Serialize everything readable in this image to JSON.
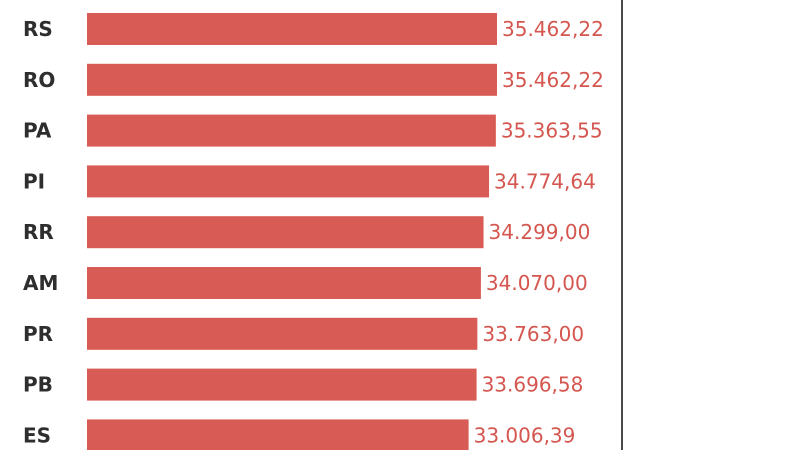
{
  "chart_data": {
    "type": "bar",
    "orientation": "horizontal",
    "categories": [
      "RS",
      "RO",
      "PA",
      "PI",
      "RR",
      "AM",
      "PR",
      "PB",
      "ES"
    ],
    "values": [
      35462.22,
      35462.22,
      35363.55,
      34774.64,
      34299.0,
      34070.0,
      33763.0,
      33696.58,
      33006.39
    ],
    "value_labels": [
      "35.462,22",
      "35.462,22",
      "35.363,55",
      "34.774,64",
      "34.299,00",
      "34.070,00",
      "33.763,00",
      "33.696,58",
      "33.006,39"
    ],
    "title": "",
    "xlabel": "",
    "ylabel": "",
    "xlim": [
      0,
      35462.22
    ],
    "grid": false,
    "legend": "none"
  },
  "colors": {
    "bar": "#d85c55",
    "value_text": "#d4564f",
    "category_text": "#2e2e2e",
    "divider": "#4a4a4a"
  }
}
